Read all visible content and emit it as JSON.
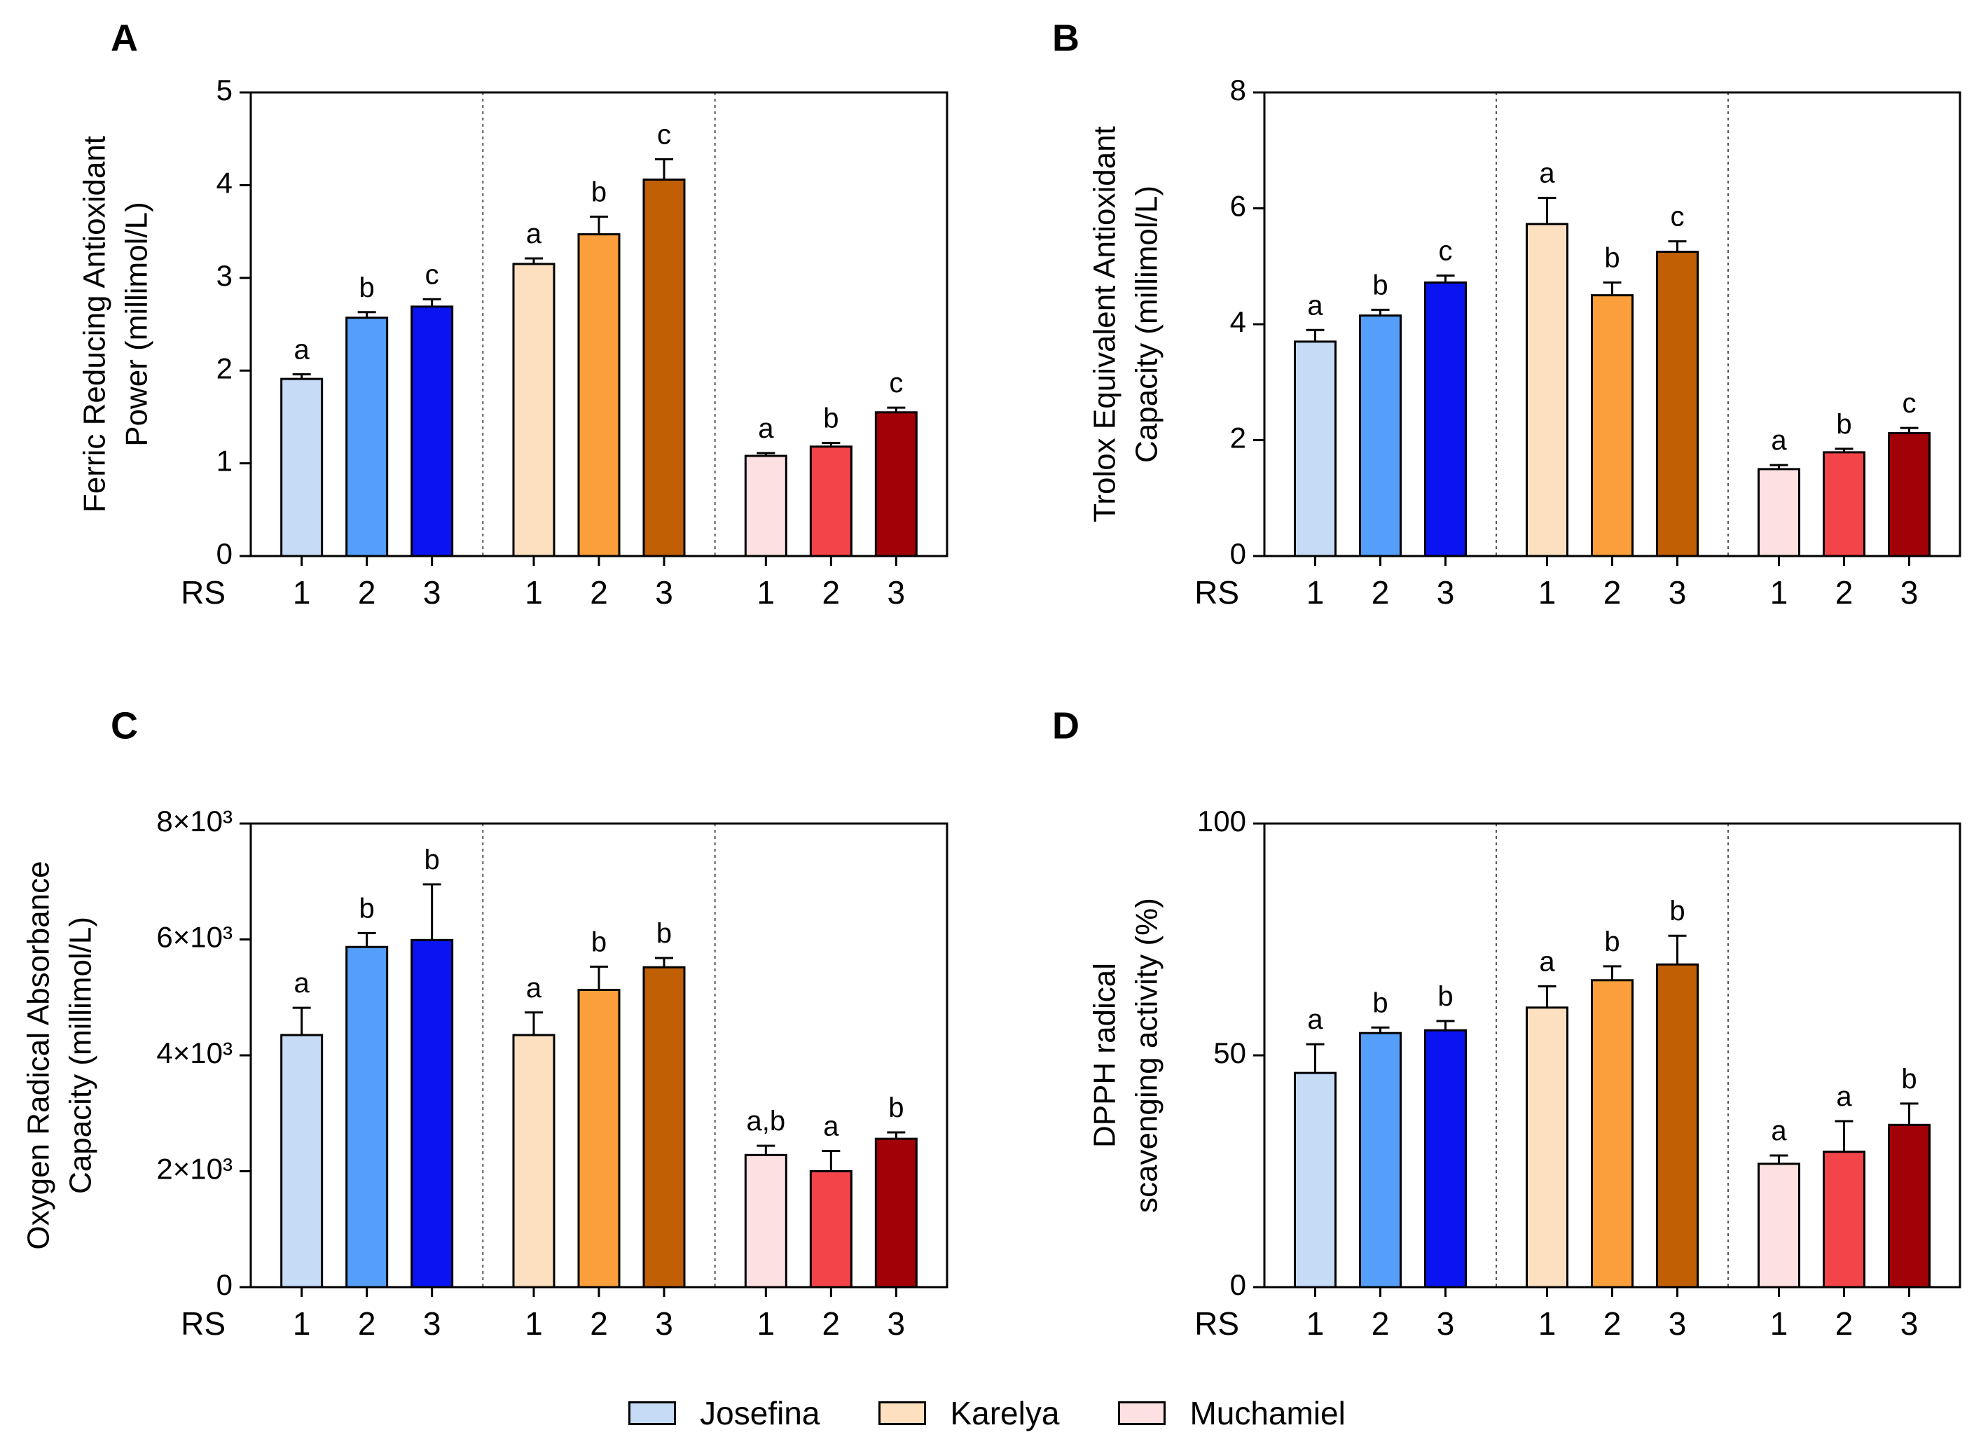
{
  "legend": [
    {
      "label": "Josefina",
      "color": "#c6dcf6"
    },
    {
      "label": "Karelya",
      "color": "#fde0bf"
    },
    {
      "label": "Muchamiel",
      "color": "#fde0e1"
    }
  ],
  "colors": {
    "josefina": [
      "#c6dcf6",
      "#559ffa",
      "#0a14f0"
    ],
    "karelya": [
      "#fde0bf",
      "#fb9f3d",
      "#c05f04"
    ],
    "muchamiel": [
      "#fde0e1",
      "#f24449",
      "#a20207"
    ]
  },
  "chart_data": [
    {
      "panel": "A",
      "type": "bar",
      "ylabel": [
        "Ferric Reducing Antioxidant",
        "Power (millimol/L)"
      ],
      "ylim": [
        0,
        5
      ],
      "yticks": [
        0,
        1,
        2,
        3,
        4,
        5
      ],
      "ytick_labels": [
        "0",
        "1",
        "2",
        "3",
        "4",
        "5"
      ],
      "xgroup_label": "RS",
      "categories": [
        "1",
        "2",
        "3"
      ],
      "series": [
        {
          "name": "Josefina",
          "values": [
            1.91,
            2.57,
            2.69
          ],
          "errors": [
            0.05,
            0.06,
            0.08
          ],
          "letters": [
            "a",
            "b",
            "c"
          ]
        },
        {
          "name": "Karelya",
          "values": [
            3.15,
            3.47,
            4.06
          ],
          "errors": [
            0.06,
            0.19,
            0.22
          ],
          "letters": [
            "a",
            "b",
            "c"
          ]
        },
        {
          "name": "Muchamiel",
          "values": [
            1.08,
            1.18,
            1.55
          ],
          "errors": [
            0.03,
            0.04,
            0.05
          ],
          "letters": [
            "a",
            "b",
            "c"
          ]
        }
      ]
    },
    {
      "panel": "B",
      "type": "bar",
      "ylabel": [
        "Trolox Equivalent Antioxidant",
        "Capacity (millimol/L)"
      ],
      "ylim": [
        0,
        8
      ],
      "yticks": [
        0,
        2,
        4,
        6,
        8
      ],
      "ytick_labels": [
        "0",
        "2",
        "4",
        "6",
        "8"
      ],
      "xgroup_label": "RS",
      "categories": [
        "1",
        "2",
        "3"
      ],
      "series": [
        {
          "name": "Josefina",
          "values": [
            3.7,
            4.15,
            4.72
          ],
          "errors": [
            0.2,
            0.1,
            0.12
          ],
          "letters": [
            "a",
            "b",
            "c"
          ]
        },
        {
          "name": "Karelya",
          "values": [
            5.73,
            4.5,
            5.25
          ],
          "errors": [
            0.45,
            0.22,
            0.18
          ],
          "letters": [
            "a",
            "b",
            "c"
          ]
        },
        {
          "name": "Muchamiel",
          "values": [
            1.5,
            1.79,
            2.12
          ],
          "errors": [
            0.07,
            0.06,
            0.09
          ],
          "letters": [
            "a",
            "b",
            "c"
          ]
        }
      ]
    },
    {
      "panel": "C",
      "type": "bar",
      "ylabel": [
        "Oxygen Radical Absorbance",
        "Capacity (millimol/L)"
      ],
      "ylim": [
        0,
        8000
      ],
      "yticks": [
        0,
        2000,
        4000,
        6000,
        8000
      ],
      "ytick_labels": [
        "0",
        "2×10³",
        "4×10³",
        "6×10³",
        "8×10³"
      ],
      "xgroup_label": "RS",
      "categories": [
        "1",
        "2",
        "3"
      ],
      "series": [
        {
          "name": "Josefina",
          "values": [
            4350,
            5870,
            5990
          ],
          "errors": [
            470,
            240,
            960
          ],
          "letters": [
            "a",
            "b",
            "b"
          ]
        },
        {
          "name": "Karelya",
          "values": [
            4350,
            5130,
            5520
          ],
          "errors": [
            390,
            400,
            160
          ],
          "letters": [
            "a",
            "b",
            "b"
          ]
        },
        {
          "name": "Muchamiel",
          "values": [
            2280,
            2000,
            2560
          ],
          "errors": [
            160,
            350,
            110
          ],
          "letters": [
            "a,b",
            "a",
            "b"
          ]
        }
      ]
    },
    {
      "panel": "D",
      "type": "bar",
      "ylabel": [
        "DPPH radical",
        "scavenging activity (%)"
      ],
      "ylim": [
        0,
        100
      ],
      "yticks": [
        0,
        50,
        100
      ],
      "ytick_labels": [
        "0",
        "50",
        "100"
      ],
      "xgroup_label": "RS",
      "categories": [
        "1",
        "2",
        "3"
      ],
      "series": [
        {
          "name": "Josefina",
          "values": [
            46.2,
            54.8,
            55.4
          ],
          "errors": [
            6.2,
            1.2,
            2.0
          ],
          "letters": [
            "a",
            "b",
            "b"
          ]
        },
        {
          "name": "Karelya",
          "values": [
            60.3,
            66.2,
            69.6
          ],
          "errors": [
            4.6,
            3.0,
            6.2
          ],
          "letters": [
            "a",
            "b",
            "b"
          ]
        },
        {
          "name": "Muchamiel",
          "values": [
            26.6,
            29.2,
            35.0
          ],
          "errors": [
            1.8,
            6.6,
            4.6
          ],
          "letters": [
            "a",
            "a",
            "b"
          ]
        }
      ]
    }
  ]
}
